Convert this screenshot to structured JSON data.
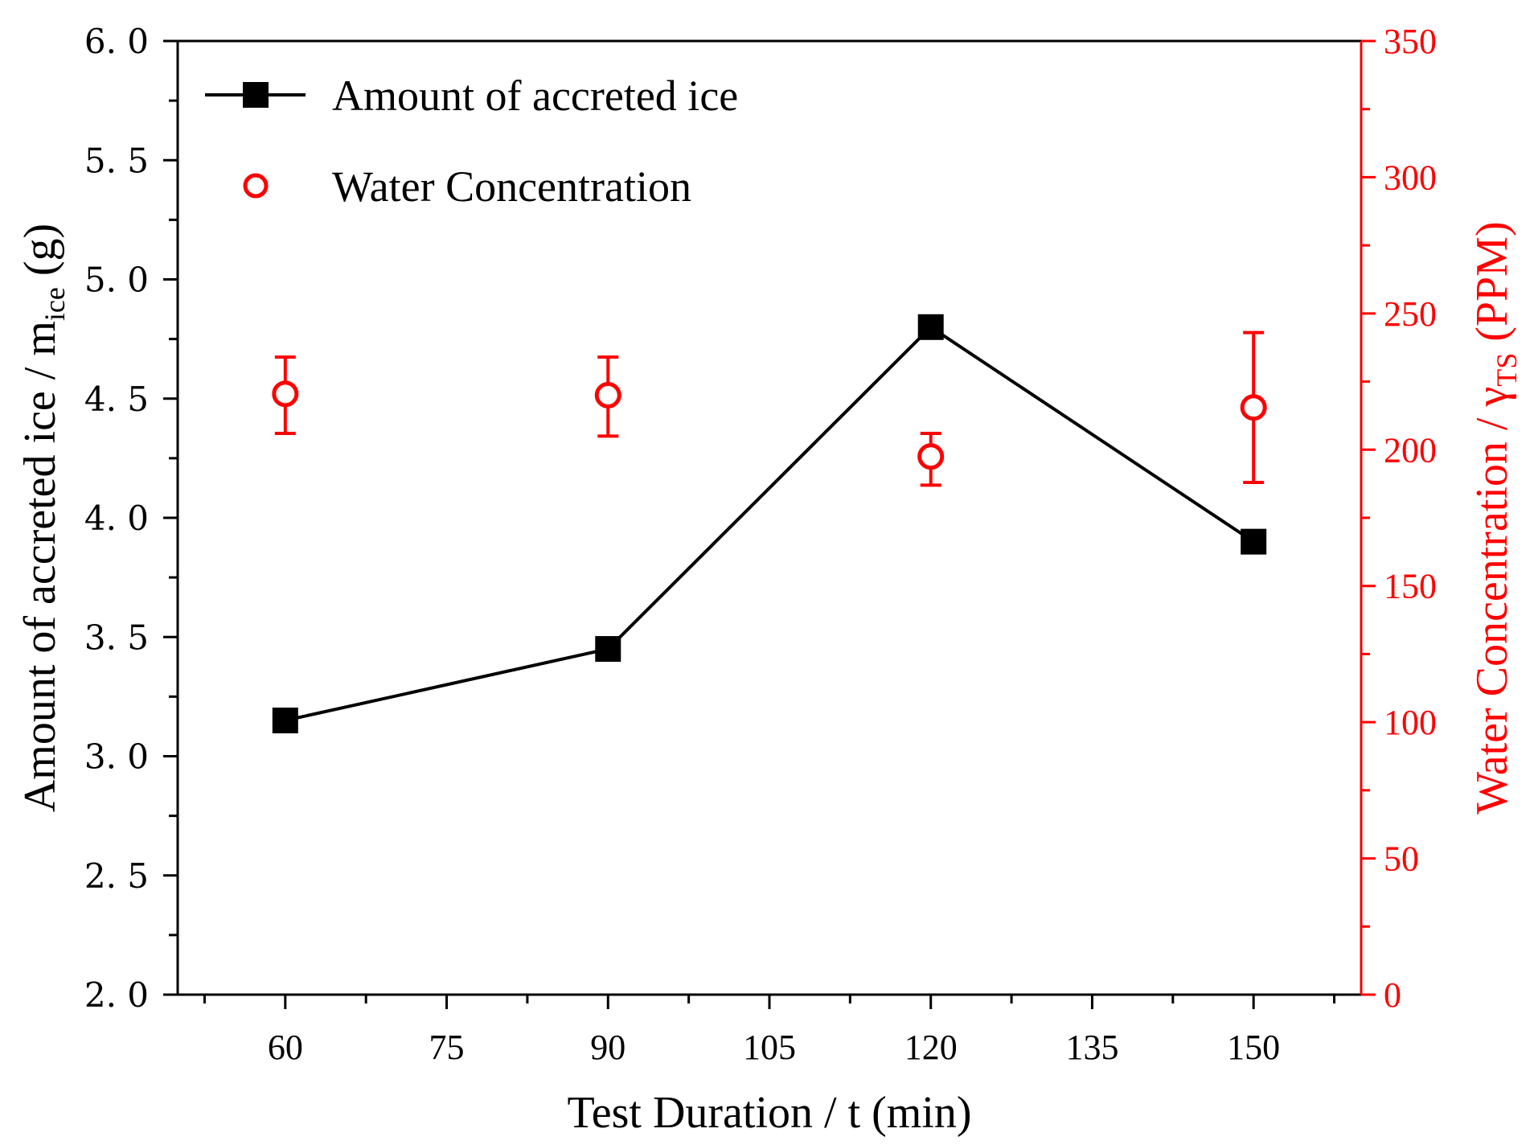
{
  "chart_data": {
    "type": "line",
    "xlabel": "Test Duration / t (min)",
    "ylabel_left": {
      "main": "Amount of accreted ice / m",
      "sub": "ice",
      "unit": " (g)"
    },
    "ylabel_right": {
      "main": "Water Concentration / γ",
      "sub": "TS",
      "unit": " (PPM)"
    },
    "xlim": [
      50,
      160
    ],
    "ylim_left": [
      2.0,
      6.0
    ],
    "ylim_right": [
      0,
      350
    ],
    "x_ticks": [
      "60",
      "75",
      "90",
      "105",
      "120",
      "135",
      "150"
    ],
    "y_left_ticks": [
      "2. 0",
      "2. 5",
      "3. 0",
      "3. 5",
      "4. 0",
      "4. 5",
      "5. 0",
      "5. 5",
      "6. 0"
    ],
    "y_right_ticks": [
      "0",
      "50",
      "100",
      "150",
      "200",
      "250",
      "300",
      "350"
    ],
    "series": [
      {
        "name": "Amount of accreted ice",
        "axis": "left",
        "marker": "filled-square",
        "color": "#000000",
        "x": [
          60,
          90,
          120,
          150
        ],
        "values": [
          3.15,
          3.45,
          4.8,
          3.9
        ]
      },
      {
        "name": "Water Concentration",
        "axis": "right",
        "marker": "open-circle",
        "color": "#ff0000",
        "x": [
          60,
          90,
          120,
          150
        ],
        "values": [
          220.5,
          220.0,
          197.5,
          215.5
        ],
        "error_low": [
          206,
          205,
          187,
          188
        ],
        "error_high": [
          234,
          234,
          206,
          243
        ]
      }
    ],
    "legend": {
      "position": "top-left"
    }
  }
}
